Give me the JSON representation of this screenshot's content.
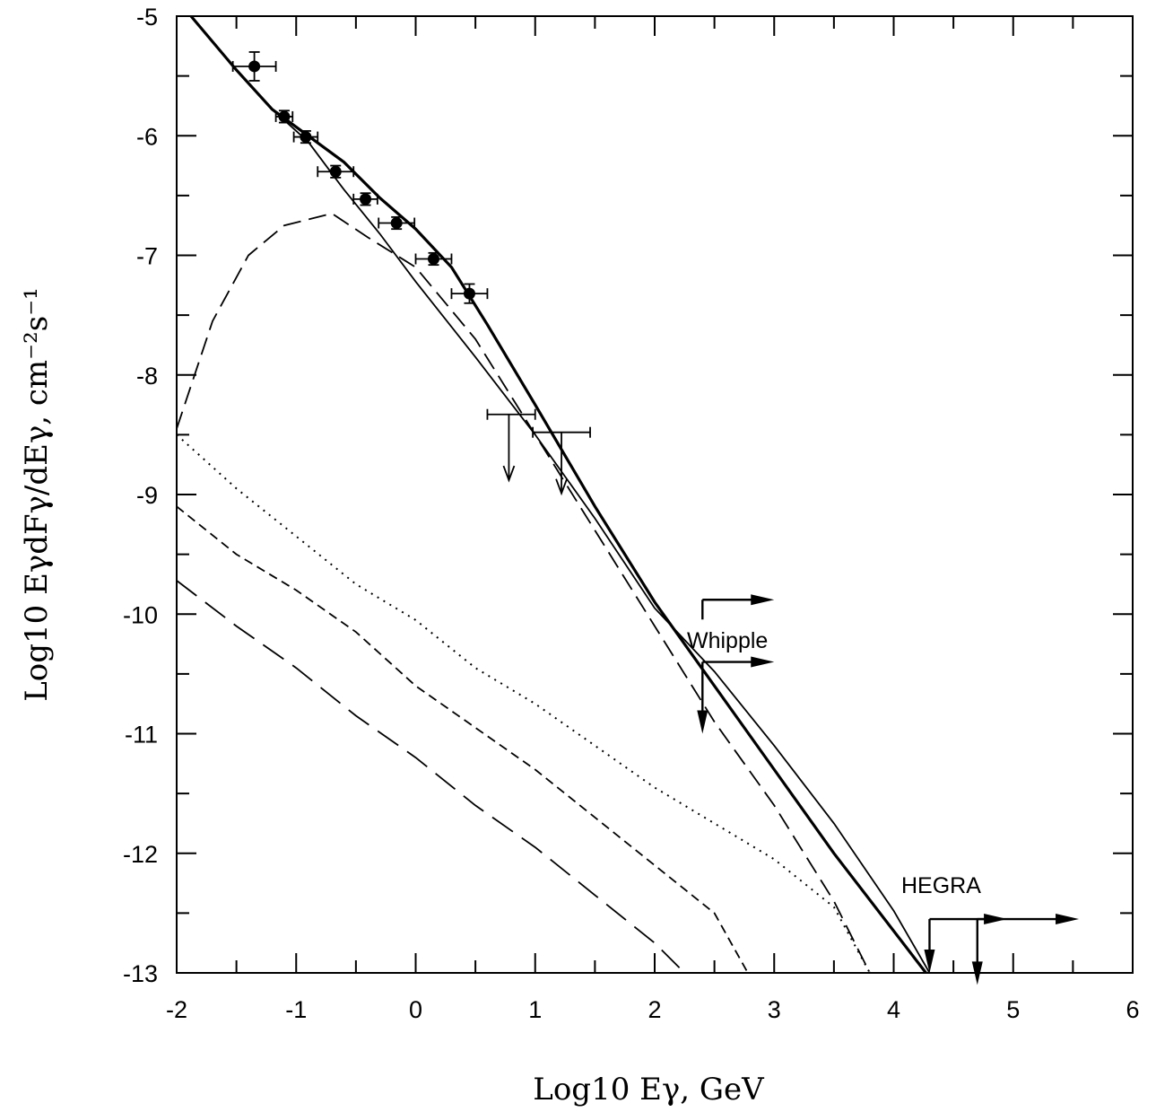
{
  "chart_data": {
    "type": "line",
    "title": "",
    "xlabel": "Log10 Eγ, GeV",
    "ylabel": "Log10 EγdFγ/dEγ, cm⁻²s⁻¹",
    "xlim": [
      -2,
      6
    ],
    "ylim": [
      -13,
      -5
    ],
    "grid": false,
    "x_major_ticks": [
      "-2",
      "-1",
      "0",
      "1",
      "2",
      "3",
      "4",
      "5",
      "6"
    ],
    "y_major_ticks": [
      "-5",
      "-6",
      "-7",
      "-8",
      "-9",
      "-10",
      "-11",
      "-12",
      "-13"
    ],
    "annotations": [
      "Whipple",
      "HEGRA"
    ],
    "series": [
      {
        "style": "solid-thick",
        "points": [
          [
            -1.88,
            -5.0
          ],
          [
            -1.5,
            -5.45
          ],
          [
            -1.2,
            -5.78
          ],
          [
            -0.9,
            -6.0
          ],
          [
            -0.6,
            -6.22
          ],
          [
            -0.3,
            -6.52
          ],
          [
            0.0,
            -6.78
          ],
          [
            0.3,
            -7.1
          ],
          [
            0.6,
            -7.58
          ],
          [
            1.0,
            -8.25
          ],
          [
            1.5,
            -9.1
          ],
          [
            2.0,
            -9.9
          ],
          [
            2.5,
            -10.6
          ],
          [
            3.0,
            -11.3
          ],
          [
            3.5,
            -12.0
          ],
          [
            4.27,
            -13.0
          ]
        ]
      },
      {
        "style": "solid-thin",
        "points": [
          [
            -1.88,
            -5.0
          ],
          [
            -1.5,
            -5.45
          ],
          [
            -1.2,
            -5.78
          ],
          [
            -0.9,
            -6.05
          ],
          [
            -0.6,
            -6.45
          ],
          [
            -0.3,
            -6.82
          ],
          [
            0.0,
            -7.22
          ],
          [
            0.5,
            -7.85
          ],
          [
            1.0,
            -8.5
          ],
          [
            1.5,
            -9.2
          ],
          [
            2.0,
            -9.95
          ],
          [
            2.5,
            -10.48
          ],
          [
            3.0,
            -11.1
          ],
          [
            3.5,
            -11.75
          ],
          [
            4.0,
            -12.48
          ],
          [
            4.3,
            -13.0
          ]
        ]
      },
      {
        "style": "dashed-long",
        "points": [
          [
            -2.0,
            -8.45
          ],
          [
            -1.7,
            -7.55
          ],
          [
            -1.4,
            -7.0
          ],
          [
            -1.1,
            -6.75
          ],
          [
            -0.7,
            -6.65
          ],
          [
            -0.4,
            -6.85
          ],
          [
            0.0,
            -7.1
          ],
          [
            0.5,
            -7.7
          ],
          [
            1.0,
            -8.5
          ],
          [
            1.5,
            -9.3
          ],
          [
            2.0,
            -10.1
          ],
          [
            2.5,
            -10.9
          ],
          [
            3.0,
            -11.6
          ],
          [
            3.5,
            -12.4
          ],
          [
            3.8,
            -13.0
          ]
        ]
      },
      {
        "style": "dotted",
        "points": [
          [
            -2.0,
            -8.5
          ],
          [
            -1.5,
            -8.95
          ],
          [
            -1.0,
            -9.35
          ],
          [
            -0.5,
            -9.75
          ],
          [
            0.0,
            -10.05
          ],
          [
            0.5,
            -10.45
          ],
          [
            1.0,
            -10.75
          ],
          [
            1.5,
            -11.1
          ],
          [
            2.0,
            -11.45
          ],
          [
            2.5,
            -11.75
          ],
          [
            3.0,
            -12.05
          ],
          [
            3.5,
            -12.45
          ],
          [
            3.8,
            -13.0
          ]
        ]
      },
      {
        "style": "dashed-short",
        "points": [
          [
            -2.0,
            -9.1
          ],
          [
            -1.5,
            -9.5
          ],
          [
            -1.0,
            -9.8
          ],
          [
            -0.5,
            -10.15
          ],
          [
            0.0,
            -10.6
          ],
          [
            0.5,
            -10.95
          ],
          [
            1.0,
            -11.3
          ],
          [
            1.5,
            -11.7
          ],
          [
            2.0,
            -12.1
          ],
          [
            2.5,
            -12.5
          ],
          [
            2.78,
            -13.0
          ]
        ]
      },
      {
        "style": "dashed-medium",
        "points": [
          [
            -2.0,
            -9.72
          ],
          [
            -1.5,
            -10.1
          ],
          [
            -1.0,
            -10.45
          ],
          [
            -0.5,
            -10.85
          ],
          [
            0.0,
            -11.2
          ],
          [
            0.5,
            -11.6
          ],
          [
            1.0,
            -11.95
          ],
          [
            1.5,
            -12.35
          ],
          [
            2.0,
            -12.75
          ],
          [
            2.25,
            -13.0
          ]
        ]
      }
    ],
    "data_points": [
      {
        "x": -1.35,
        "y": -5.42,
        "xerr": 0.18,
        "yerr": 0.12
      },
      {
        "x": -1.1,
        "y": -5.84,
        "xerr": 0.07,
        "yerr": 0.05
      },
      {
        "x": -0.92,
        "y": -6.01,
        "xerr": 0.1,
        "yerr": 0.05
      },
      {
        "x": -0.67,
        "y": -6.3,
        "xerr": 0.15,
        "yerr": 0.05
      },
      {
        "x": -0.42,
        "y": -6.53,
        "xerr": 0.1,
        "yerr": 0.05
      },
      {
        "x": -0.16,
        "y": -6.73,
        "xerr": 0.15,
        "yerr": 0.05
      },
      {
        "x": 0.15,
        "y": -7.03,
        "xerr": 0.15,
        "yerr": 0.05
      },
      {
        "x": 0.45,
        "y": -7.32,
        "xerr": 0.15,
        "yerr": 0.08
      }
    ],
    "upper_limits": [
      {
        "x": 0.78,
        "y": -8.33,
        "x_from": 0.6,
        "x_to": 1.0,
        "y_to": -8.88
      },
      {
        "x": 1.22,
        "y": -8.48,
        "x_from": 0.98,
        "x_to": 1.46,
        "y_to": -8.99
      }
    ],
    "limit_arrows": [
      {
        "x": 2.4,
        "y": -9.88,
        "right_to": 3.0,
        "down_to": null
      },
      {
        "x": 2.4,
        "y": -10.4,
        "right_to": 3.0,
        "down_to": -11.0
      },
      {
        "x": 4.3,
        "y": -12.55,
        "right_to": 4.95,
        "down_to": -13.0
      },
      {
        "x": 4.7,
        "y": -12.55,
        "right_to": 5.55,
        "down_to": -13.1
      }
    ]
  }
}
